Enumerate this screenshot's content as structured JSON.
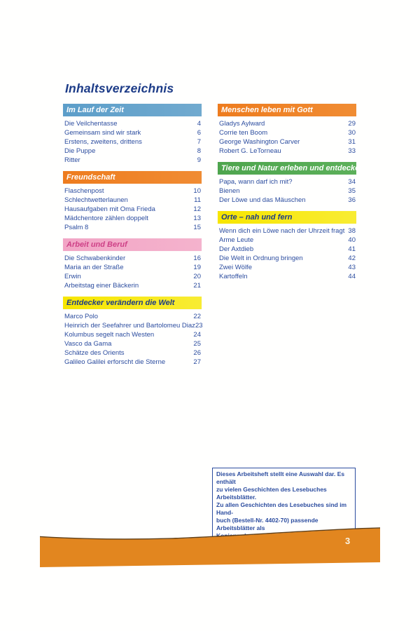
{
  "title": "Inhaltsverzeichnis",
  "columns": {
    "left": [
      {
        "title": "Im Lauf der Zeit",
        "style": "blue",
        "items": [
          {
            "label": "Die Veilchentasse",
            "page": "4"
          },
          {
            "label": "Gemeinsam sind wir stark",
            "page": "6"
          },
          {
            "label": "Erstens, zweitens, drittens",
            "page": "7"
          },
          {
            "label": "Die Puppe",
            "page": "8"
          },
          {
            "label": "Ritter",
            "page": "9"
          }
        ]
      },
      {
        "title": "Freundschaft",
        "style": "orange",
        "items": [
          {
            "label": "Flaschenpost",
            "page": "10"
          },
          {
            "label": "Schlechtwetterlaunen",
            "page": "11"
          },
          {
            "label": "Hausaufgaben mit Oma Frieda",
            "page": "12"
          },
          {
            "label": "Mädchentore zählen doppelt",
            "page": "13"
          },
          {
            "label": "Psalm 8",
            "page": "15"
          }
        ]
      },
      {
        "title": "Arbeit und Beruf",
        "style": "pink",
        "items": [
          {
            "label": "Die Schwabenkinder",
            "page": "16"
          },
          {
            "label": "Maria an der Straße",
            "page": "19"
          },
          {
            "label": "Erwin",
            "page": "20"
          },
          {
            "label": "Arbeitstag einer Bäckerin",
            "page": "21"
          }
        ]
      },
      {
        "title": "Entdecker verändern die Welt",
        "style": "yellow",
        "items": [
          {
            "label": "Marco Polo",
            "page": "22"
          },
          {
            "label": "Heinrich der Seefahrer und Bartolomeu Diaz",
            "page": "23"
          },
          {
            "label": "Kolumbus segelt nach Westen",
            "page": "24"
          },
          {
            "label": "Vasco da Gama",
            "page": "25"
          },
          {
            "label": "Schätze des Orients",
            "page": "26"
          },
          {
            "label": "Galileo Galilei erforscht die Sterne",
            "page": "27"
          }
        ]
      }
    ],
    "right": [
      {
        "title": "Menschen leben mit Gott",
        "style": "orange",
        "items": [
          {
            "label": "Gladys Aylward",
            "page": "29"
          },
          {
            "label": "Corrie ten Boom",
            "page": "30"
          },
          {
            "label": "George Washington Carver",
            "page": "31"
          },
          {
            "label": "Robert G. LeTorneau",
            "page": "33"
          }
        ]
      },
      {
        "title": "Tiere und Natur erleben und entdecken",
        "style": "green",
        "items": [
          {
            "label": "Papa, wann darf ich mit?",
            "page": "34"
          },
          {
            "label": "Bienen",
            "page": "35"
          },
          {
            "label": "Der Löwe und das Mäuschen",
            "page": "36"
          }
        ]
      },
      {
        "title": "Orte – nah und fern",
        "style": "yellow",
        "items": [
          {
            "label": "Wenn dich ein Löwe nach der Uhrzeit fragt",
            "page": "38"
          },
          {
            "label": "Arme Leute",
            "page": "40"
          },
          {
            "label": "Der Axtdieb",
            "page": "41"
          },
          {
            "label": "Die Welt in Ordnung bringen",
            "page": "42"
          },
          {
            "label": "Zwei Wölfe",
            "page": "43"
          },
          {
            "label": "Kartoffeln",
            "page": "44"
          }
        ]
      }
    ]
  },
  "note": {
    "lines": [
      "Dieses Arbeitsheft stellt eine Auswahl dar. Es enthält",
      "zu vielen Geschichten des Lesebuches Arbeitsblätter.",
      "Zu allen Geschichten des Lesebuches sind im Hand-",
      "buch (Bestell-Nr. 4402-70) passende Arbeitsblätter als",
      "Kopiervorlagen vorhanden."
    ]
  },
  "footer": {
    "page_number": "3"
  },
  "colors": {
    "blue_bar": "#5C9EC9",
    "orange_bar": "#EE7C1E",
    "pink_bar": "#F2A5C5",
    "pink_text": "#CE4187",
    "yellow_bar": "#F7E600",
    "green_bar": "#4EA54E",
    "navy_text": "#1C3B87",
    "item_text": "#2B4C9F",
    "footer_orange": "#E2861F",
    "footer_edge_line": "#5F3E16"
  }
}
